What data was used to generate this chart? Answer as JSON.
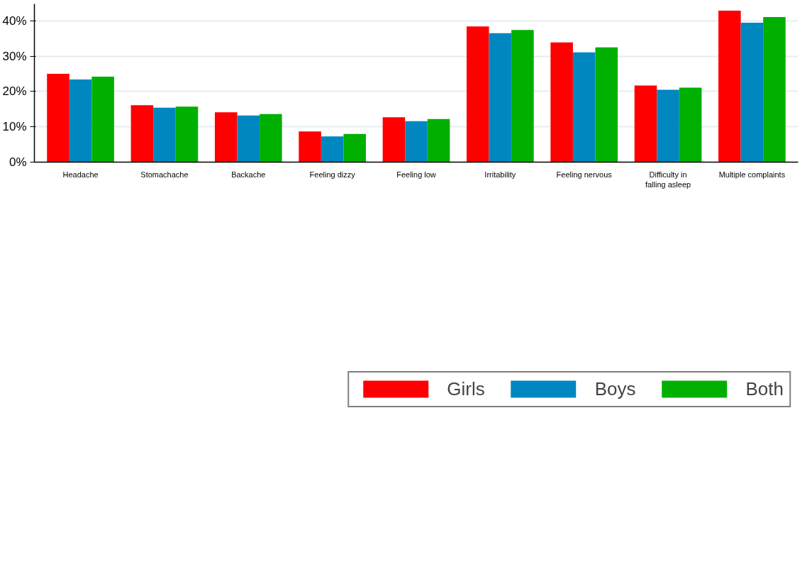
{
  "chart_data": {
    "type": "bar",
    "categories": [
      "Headache",
      "Stomachache",
      "Backache",
      "Feeling dizzy",
      "Feeling low",
      "Irritability",
      "Feeling nervous",
      "Difficulty in\nfalling asleep",
      "Multiple complaints"
    ],
    "series": [
      {
        "name": "Girls",
        "color": "#ff0000",
        "values": [
          25.0,
          16.1,
          14.1,
          8.7,
          12.7,
          38.4,
          33.9,
          21.7,
          42.9
        ]
      },
      {
        "name": "Boys",
        "color": "#0087c0",
        "values": [
          23.4,
          15.4,
          13.2,
          7.3,
          11.6,
          36.5,
          31.1,
          20.5,
          39.5
        ]
      },
      {
        "name": "Both",
        "color": "#00b000",
        "values": [
          24.2,
          15.7,
          13.6,
          8.0,
          12.2,
          37.4,
          32.5,
          21.1,
          41.1
        ]
      }
    ],
    "ylim": [
      0,
      44.8
    ],
    "yticks": [
      {
        "value": 0,
        "label": "0%"
      },
      {
        "value": 10,
        "label": "10%"
      },
      {
        "value": 20,
        "label": "20%"
      },
      {
        "value": 30,
        "label": "30%"
      },
      {
        "value": 40,
        "label": "40%"
      }
    ],
    "grid": "y",
    "legend": "bottom"
  }
}
